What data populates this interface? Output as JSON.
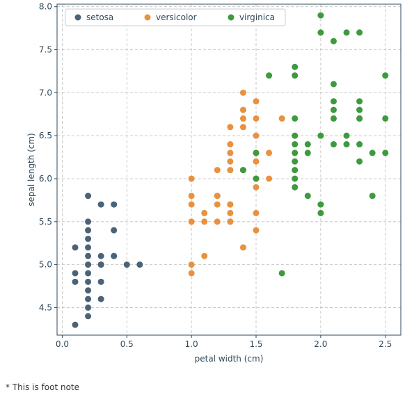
{
  "footnote": "* This is foot note",
  "chart_data": {
    "type": "scatter",
    "title": "",
    "xlabel": "petal width (cm)",
    "ylabel": "sepal length (cm)",
    "xlim": [
      -0.04,
      2.62
    ],
    "ylim": [
      4.18,
      8.03
    ],
    "xticks": [
      0.0,
      0.5,
      1.0,
      1.5,
      2.0,
      2.5
    ],
    "xtick_labels": [
      "0.0",
      "0.5",
      "1.0",
      "1.5",
      "2.0",
      "2.5"
    ],
    "yticks": [
      4.5,
      5.0,
      5.5,
      6.0,
      6.5,
      7.0,
      7.5,
      8.0
    ],
    "ytick_labels": [
      "4.5",
      "5.0",
      "5.5",
      "6.0",
      "6.5",
      "7.0",
      "7.5",
      "8.0"
    ],
    "grid": true,
    "legend": {
      "placement": "top-left",
      "ncol": 3
    },
    "series": [
      {
        "name": "setosa",
        "color": "#4c6377",
        "x": [
          0.1,
          0.1,
          0.1,
          0.1,
          0.2,
          0.2,
          0.2,
          0.2,
          0.2,
          0.2,
          0.2,
          0.2,
          0.2,
          0.2,
          0.2,
          0.2,
          0.2,
          0.3,
          0.3,
          0.3,
          0.3,
          0.3,
          0.3,
          0.4,
          0.4,
          0.4,
          0.4,
          0.5,
          0.6
        ],
        "y": [
          4.3,
          4.8,
          4.9,
          5.2,
          4.4,
          4.6,
          4.7,
          4.8,
          4.9,
          5.0,
          5.1,
          5.2,
          5.3,
          5.4,
          5.5,
          5.8,
          4.5,
          4.6,
          4.8,
          5.0,
          5.1,
          5.7,
          5.0,
          5.1,
          5.4,
          5.7,
          5.1,
          5.0,
          5.0
        ]
      },
      {
        "name": "versicolor",
        "color": "#e8913f",
        "x": [
          1.0,
          1.0,
          1.0,
          1.0,
          1.0,
          1.0,
          1.1,
          1.1,
          1.1,
          1.2,
          1.2,
          1.2,
          1.2,
          1.2,
          1.3,
          1.3,
          1.3,
          1.3,
          1.3,
          1.3,
          1.3,
          1.3,
          1.3,
          1.3,
          1.4,
          1.4,
          1.4,
          1.4,
          1.4,
          1.4,
          1.5,
          1.5,
          1.5,
          1.5,
          1.5,
          1.5,
          1.5,
          1.5,
          1.5,
          1.6,
          1.6,
          1.7
        ],
        "y": [
          4.9,
          5.0,
          5.5,
          5.7,
          5.8,
          6.0,
          5.1,
          5.5,
          5.6,
          5.5,
          5.7,
          5.8,
          6.1,
          5.8,
          5.5,
          5.6,
          5.7,
          6.1,
          6.2,
          6.3,
          6.4,
          6.6,
          5.7,
          5.5,
          5.2,
          6.6,
          6.7,
          6.8,
          7.0,
          6.1,
          5.4,
          5.6,
          5.9,
          6.2,
          6.3,
          6.5,
          6.7,
          6.9,
          6.0,
          6.0,
          6.3,
          6.7
        ]
      },
      {
        "name": "virginica",
        "color": "#3e9a3e",
        "x": [
          1.4,
          1.5,
          1.5,
          1.6,
          1.7,
          1.8,
          1.8,
          1.8,
          1.8,
          1.8,
          1.8,
          1.8,
          1.8,
          1.8,
          1.8,
          1.9,
          1.9,
          1.9,
          2.0,
          2.0,
          2.0,
          2.0,
          2.0,
          2.1,
          2.1,
          2.1,
          2.1,
          2.1,
          2.1,
          2.2,
          2.2,
          2.2,
          2.3,
          2.3,
          2.3,
          2.3,
          2.3,
          2.3,
          2.3,
          2.4,
          2.4,
          2.5,
          2.5,
          2.5
        ],
        "y": [
          6.1,
          6.0,
          6.3,
          7.2,
          4.9,
          5.9,
          6.0,
          6.1,
          6.2,
          6.3,
          6.4,
          6.5,
          6.7,
          7.2,
          7.3,
          5.8,
          6.3,
          6.4,
          5.6,
          5.7,
          6.5,
          7.7,
          7.9,
          6.4,
          6.7,
          6.8,
          6.9,
          7.1,
          7.6,
          6.4,
          6.5,
          7.7,
          6.2,
          6.4,
          6.7,
          6.8,
          6.9,
          7.7,
          6.7,
          5.8,
          6.3,
          6.3,
          6.7,
          7.2
        ]
      }
    ]
  }
}
